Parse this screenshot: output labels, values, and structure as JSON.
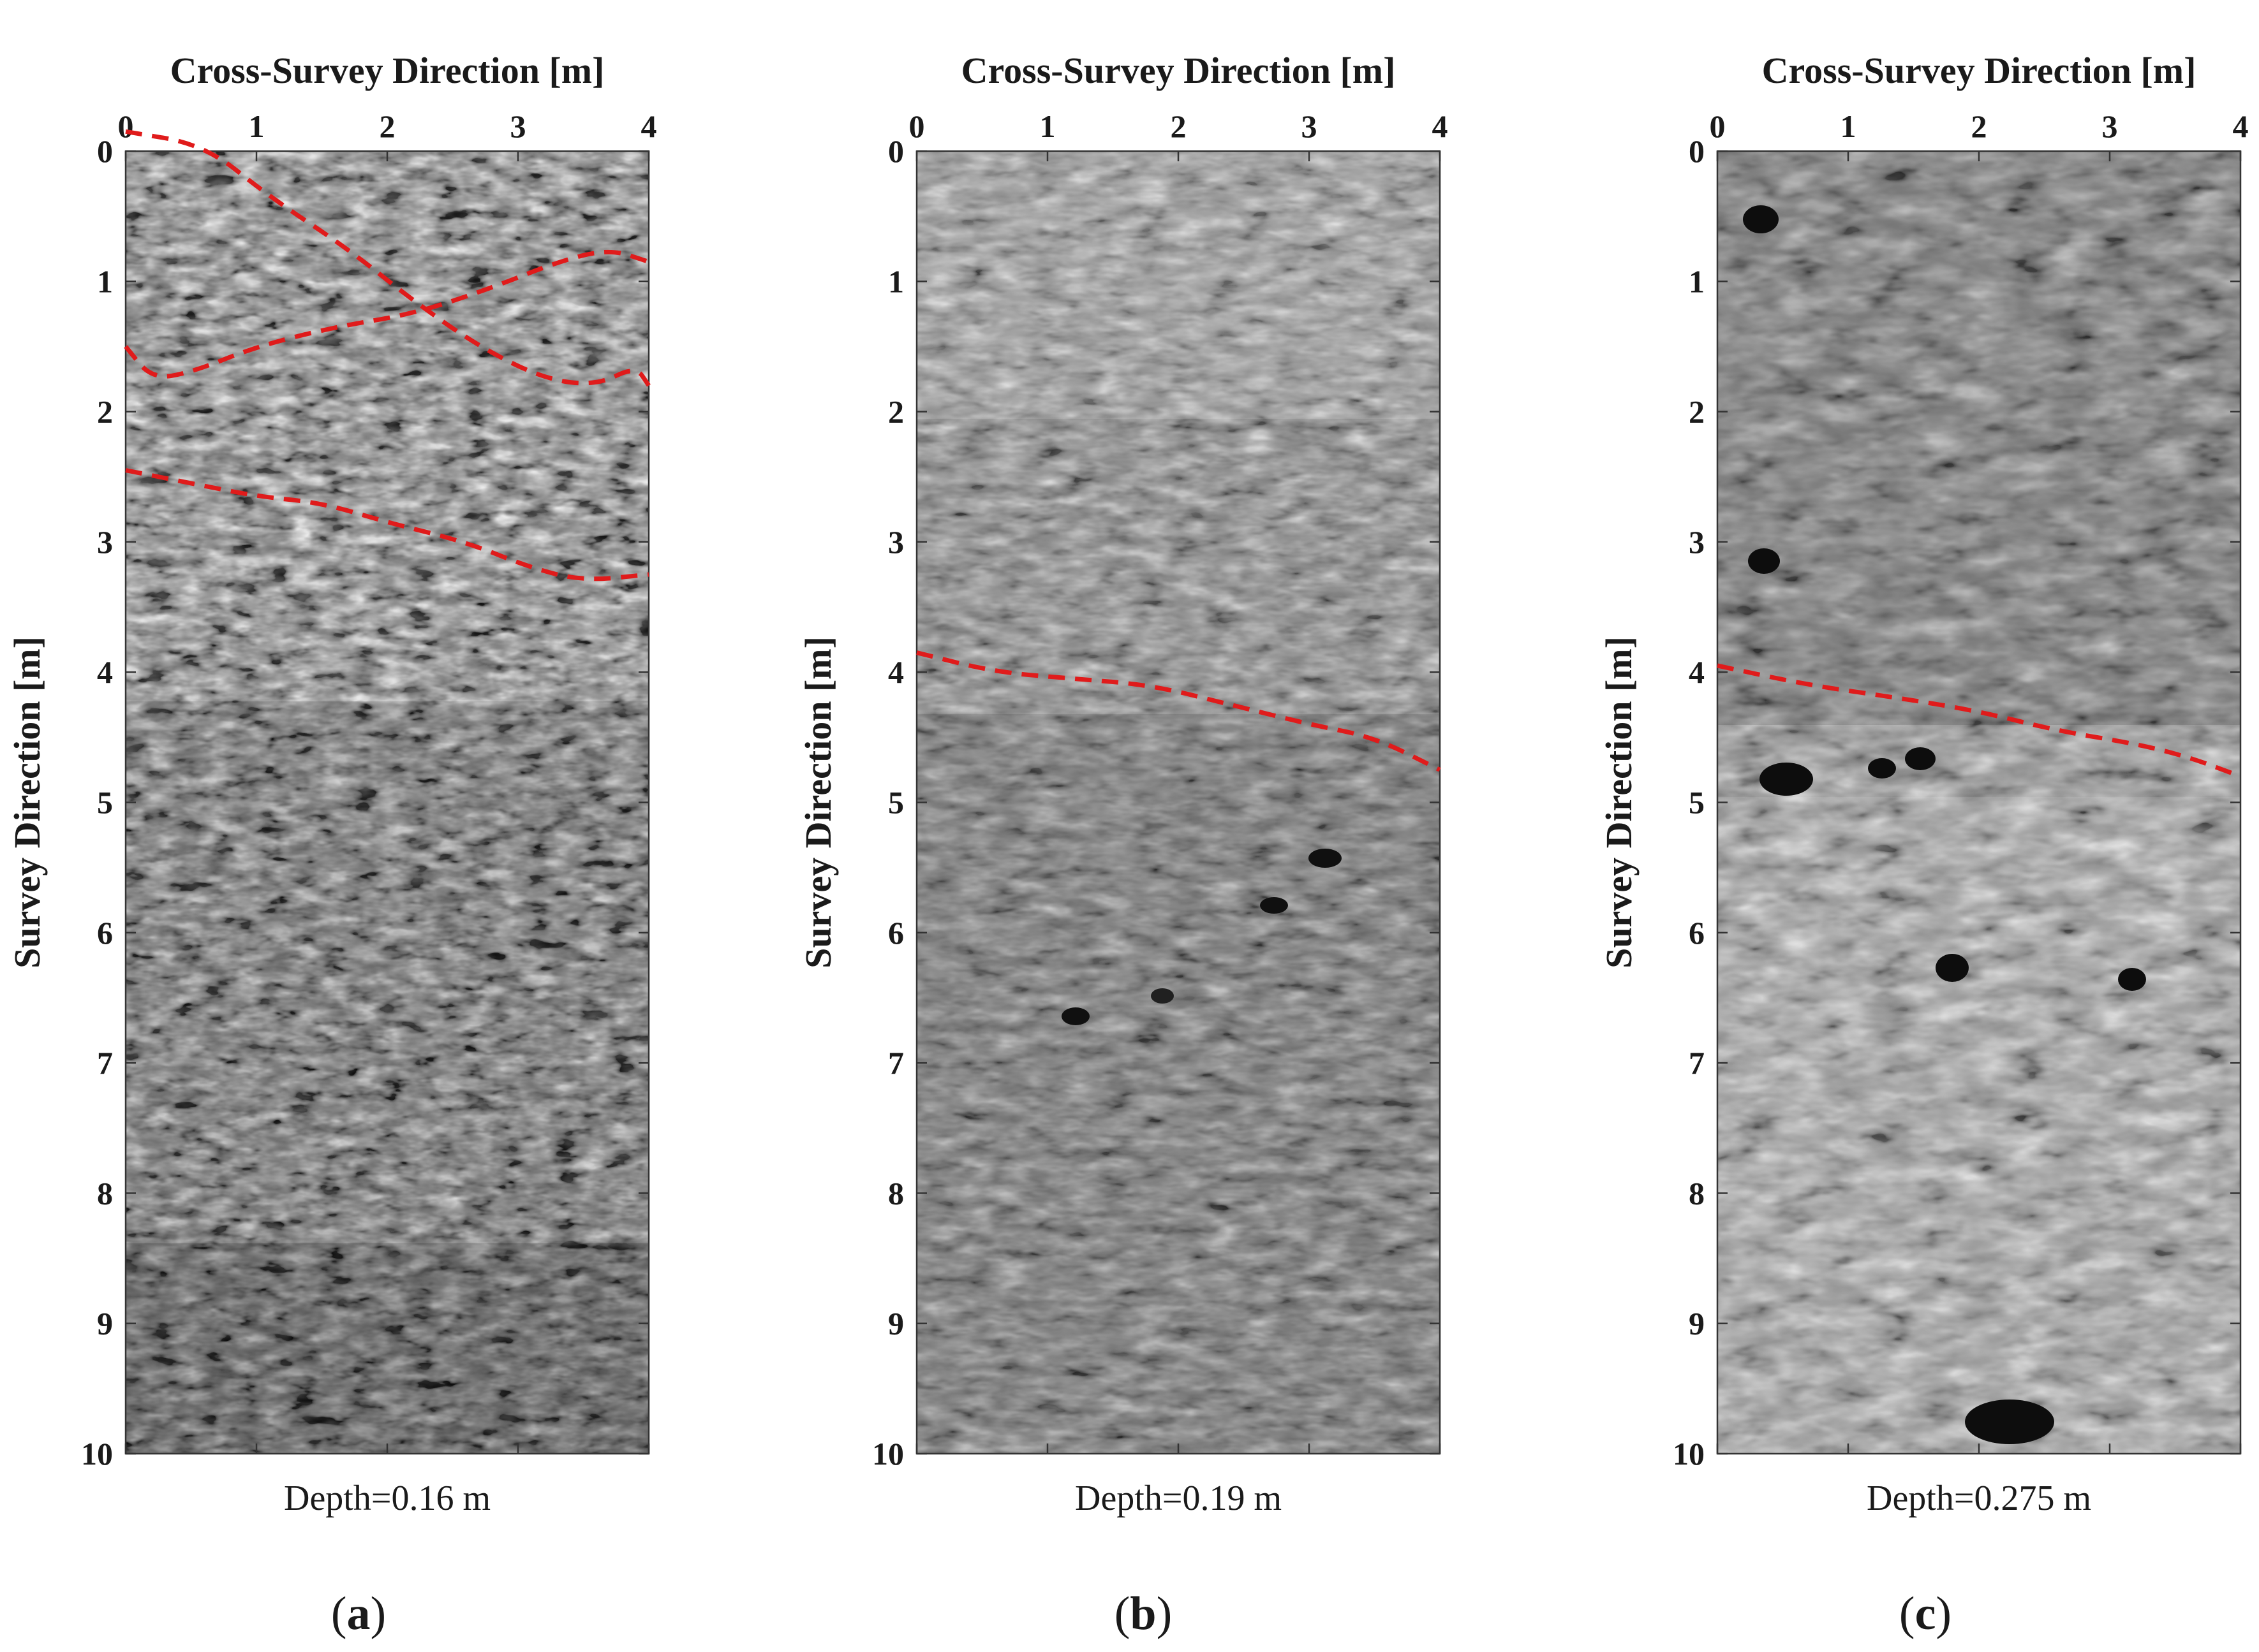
{
  "figure": {
    "panels": [
      {
        "id": "a",
        "xlabel": "Cross-Survey Direction [m]",
        "ylabel": "Survey Direction [m]",
        "xticks": [
          "0",
          "1",
          "2",
          "3",
          "4"
        ],
        "yticks": [
          "0",
          "1",
          "2",
          "3",
          "4",
          "5",
          "6",
          "7",
          "8",
          "9",
          "10"
        ],
        "depth_label": "Depth=0.16 m",
        "panel_label_open": "(",
        "panel_label_letter": "a",
        "panel_label_close": ")",
        "tone": "high-contrast",
        "boundaries_m": [
          [
            [
              0,
              -0.15
            ],
            [
              0.6,
              -0.05
            ],
            [
              1.1,
              0.35
            ],
            [
              1.7,
              0.75
            ],
            [
              2.2,
              1.15
            ],
            [
              2.7,
              1.5
            ],
            [
              3.2,
              1.75
            ],
            [
              3.6,
              1.8
            ],
            [
              3.9,
              1.65
            ],
            [
              4,
              1.8
            ]
          ],
          [
            [
              0,
              1.5
            ],
            [
              0.2,
              1.75
            ],
            [
              0.5,
              1.7
            ],
            [
              1.0,
              1.5
            ],
            [
              1.6,
              1.35
            ],
            [
              2.2,
              1.25
            ],
            [
              2.8,
              1.05
            ],
            [
              3.3,
              0.85
            ],
            [
              3.7,
              0.75
            ],
            [
              4,
              0.85
            ]
          ],
          [
            [
              0,
              2.45
            ],
            [
              0.5,
              2.55
            ],
            [
              1.0,
              2.65
            ],
            [
              1.5,
              2.7
            ],
            [
              2.0,
              2.85
            ],
            [
              2.6,
              3.0
            ],
            [
              3.1,
              3.2
            ],
            [
              3.5,
              3.3
            ],
            [
              4,
              3.25
            ]
          ]
        ]
      },
      {
        "id": "b",
        "xlabel": "Cross-Survey Direction [m]",
        "ylabel": "Survey Direction [m]",
        "xticks": [
          "0",
          "1",
          "2",
          "3",
          "4"
        ],
        "yticks": [
          "0",
          "1",
          "2",
          "3",
          "4",
          "5",
          "6",
          "7",
          "8",
          "9",
          "10"
        ],
        "depth_label": "Depth=0.19 m",
        "panel_label_open": "(",
        "panel_label_letter": "b",
        "panel_label_close": ")",
        "tone": "mid-gray",
        "boundaries_m": [
          [
            [
              0,
              3.85
            ],
            [
              0.6,
              4.0
            ],
            [
              1.2,
              4.05
            ],
            [
              1.8,
              4.1
            ],
            [
              2.4,
              4.25
            ],
            [
              3.0,
              4.4
            ],
            [
              3.5,
              4.5
            ],
            [
              4,
              4.75
            ]
          ]
        ]
      },
      {
        "id": "c",
        "xlabel": "Cross-Survey Direction [m]",
        "ylabel": "Survey Direction [m]",
        "xticks": [
          "0",
          "1",
          "2",
          "3",
          "4"
        ],
        "yticks": [
          "0",
          "1",
          "2",
          "3",
          "4",
          "5",
          "6",
          "7",
          "8",
          "9",
          "10"
        ],
        "depth_label": "Depth=0.275 m",
        "panel_label_open": "(",
        "panel_label_letter": "c",
        "panel_label_close": ")",
        "tone": "light-gray",
        "boundaries_m": [
          [
            [
              0,
              3.95
            ],
            [
              0.7,
              4.1
            ],
            [
              1.4,
              4.2
            ],
            [
              2.0,
              4.3
            ],
            [
              2.6,
              4.45
            ],
            [
              3.2,
              4.55
            ],
            [
              3.6,
              4.65
            ],
            [
              4,
              4.8
            ]
          ]
        ]
      }
    ],
    "colors": {
      "boundary": "#e01b1b",
      "frame": "#333333",
      "text": "#1a1a1a"
    }
  }
}
